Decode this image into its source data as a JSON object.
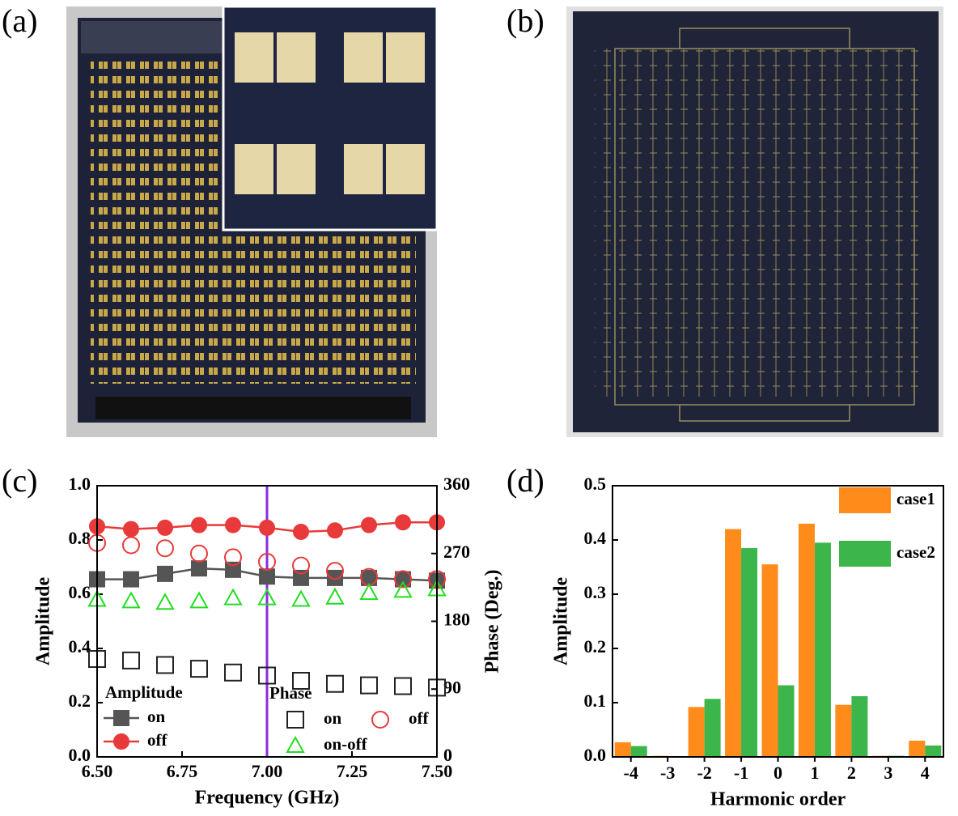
{
  "panels": [
    "(a)",
    "(b)",
    "(c)",
    "(d)"
  ],
  "chart_data": [
    {
      "type": "line",
      "x_label": "Frequency (GHz)",
      "y_label": "Amplitude",
      "y2_label": "Phase (Deg.)",
      "x": [
        6.5,
        6.6,
        6.7,
        6.8,
        6.9,
        7.0,
        7.1,
        7.2,
        7.3,
        7.4,
        7.5
      ],
      "xlim": [
        6.5,
        7.5
      ],
      "xticks": [
        {
          "value": 6.5,
          "label": "6.50"
        },
        {
          "value": 6.75,
          "label": "6.75"
        },
        {
          "value": 7.0,
          "label": "7.00"
        },
        {
          "value": 7.25,
          "label": "7.25"
        },
        {
          "value": 7.5,
          "label": "7.50"
        }
      ],
      "ylim": [
        0,
        1
      ],
      "yticks": [
        {
          "value": 0,
          "label": "0.0"
        },
        {
          "value": 0.2,
          "label": "0.2"
        },
        {
          "value": 0.4,
          "label": "0.4"
        },
        {
          "value": 0.6,
          "label": "0.6"
        },
        {
          "value": 0.8,
          "label": "0.8"
        },
        {
          "value": 1,
          "label": "1.0"
        }
      ],
      "y2lim": [
        0,
        360
      ],
      "y2ticks": [
        0,
        90,
        180,
        270,
        360
      ],
      "vline": 7.0,
      "vline_color": "#8a2be2",
      "legend_titles": [
        "Amplitude",
        "Phase"
      ],
      "series": [
        {
          "name": "on",
          "group": 0,
          "color": "#555555",
          "marker": "square",
          "filled": true,
          "line": true,
          "values": [
            0.655,
            0.655,
            0.675,
            0.695,
            0.69,
            0.665,
            0.66,
            0.66,
            0.66,
            0.655,
            0.65
          ]
        },
        {
          "name": "off",
          "group": 0,
          "color": "#e83a3a",
          "marker": "circle",
          "filled": true,
          "line": true,
          "values": [
            0.85,
            0.84,
            0.845,
            0.855,
            0.855,
            0.845,
            0.83,
            0.835,
            0.855,
            0.865,
            0.865
          ]
        },
        {
          "name": "on",
          "group": 1,
          "axis": "y2",
          "color": "#222222",
          "marker": "square",
          "filled": false,
          "line": false,
          "values": [
            130,
            128,
            122,
            117,
            112,
            108,
            101,
            97,
            95,
            94,
            92
          ]
        },
        {
          "name": "off",
          "group": 1,
          "axis": "y2",
          "color": "#e83a3a",
          "marker": "circle",
          "filled": false,
          "line": false,
          "values": [
            284,
            281,
            277,
            270,
            265,
            259,
            254,
            247,
            239,
            236,
            236
          ]
        },
        {
          "name": "on-off",
          "group": 1,
          "axis": "y2",
          "color": "#22dd22",
          "marker": "triangle",
          "filled": false,
          "line": false,
          "values": [
            209,
            207,
            205,
            207,
            211,
            211,
            209,
            212,
            218,
            221,
            223
          ]
        }
      ]
    },
    {
      "type": "bar",
      "x_label": "Harmonic order",
      "y_label": "Amplitude",
      "categories": [
        "-4",
        "-3",
        "-2",
        "-1",
        "0",
        "1",
        "2",
        "3",
        "4"
      ],
      "ylim": [
        0,
        0.5
      ],
      "yticks": [
        {
          "value": 0,
          "label": "0.0"
        },
        {
          "value": 0.1,
          "label": "0.1"
        },
        {
          "value": 0.2,
          "label": "0.2"
        },
        {
          "value": 0.3,
          "label": "0.3"
        },
        {
          "value": 0.4,
          "label": "0.4"
        },
        {
          "value": 0.5,
          "label": "0.5"
        }
      ],
      "series": [
        {
          "name": "case1",
          "color": "#ff8c1a",
          "values": [
            0.027,
            0.002,
            0.092,
            0.42,
            0.355,
            0.43,
            0.096,
            0.002,
            0.03
          ]
        },
        {
          "name": "case2",
          "color": "#3cb54a",
          "values": [
            0.02,
            0,
            0.107,
            0.385,
            0.132,
            0.395,
            0.112,
            0.002,
            0.021
          ]
        }
      ]
    }
  ]
}
